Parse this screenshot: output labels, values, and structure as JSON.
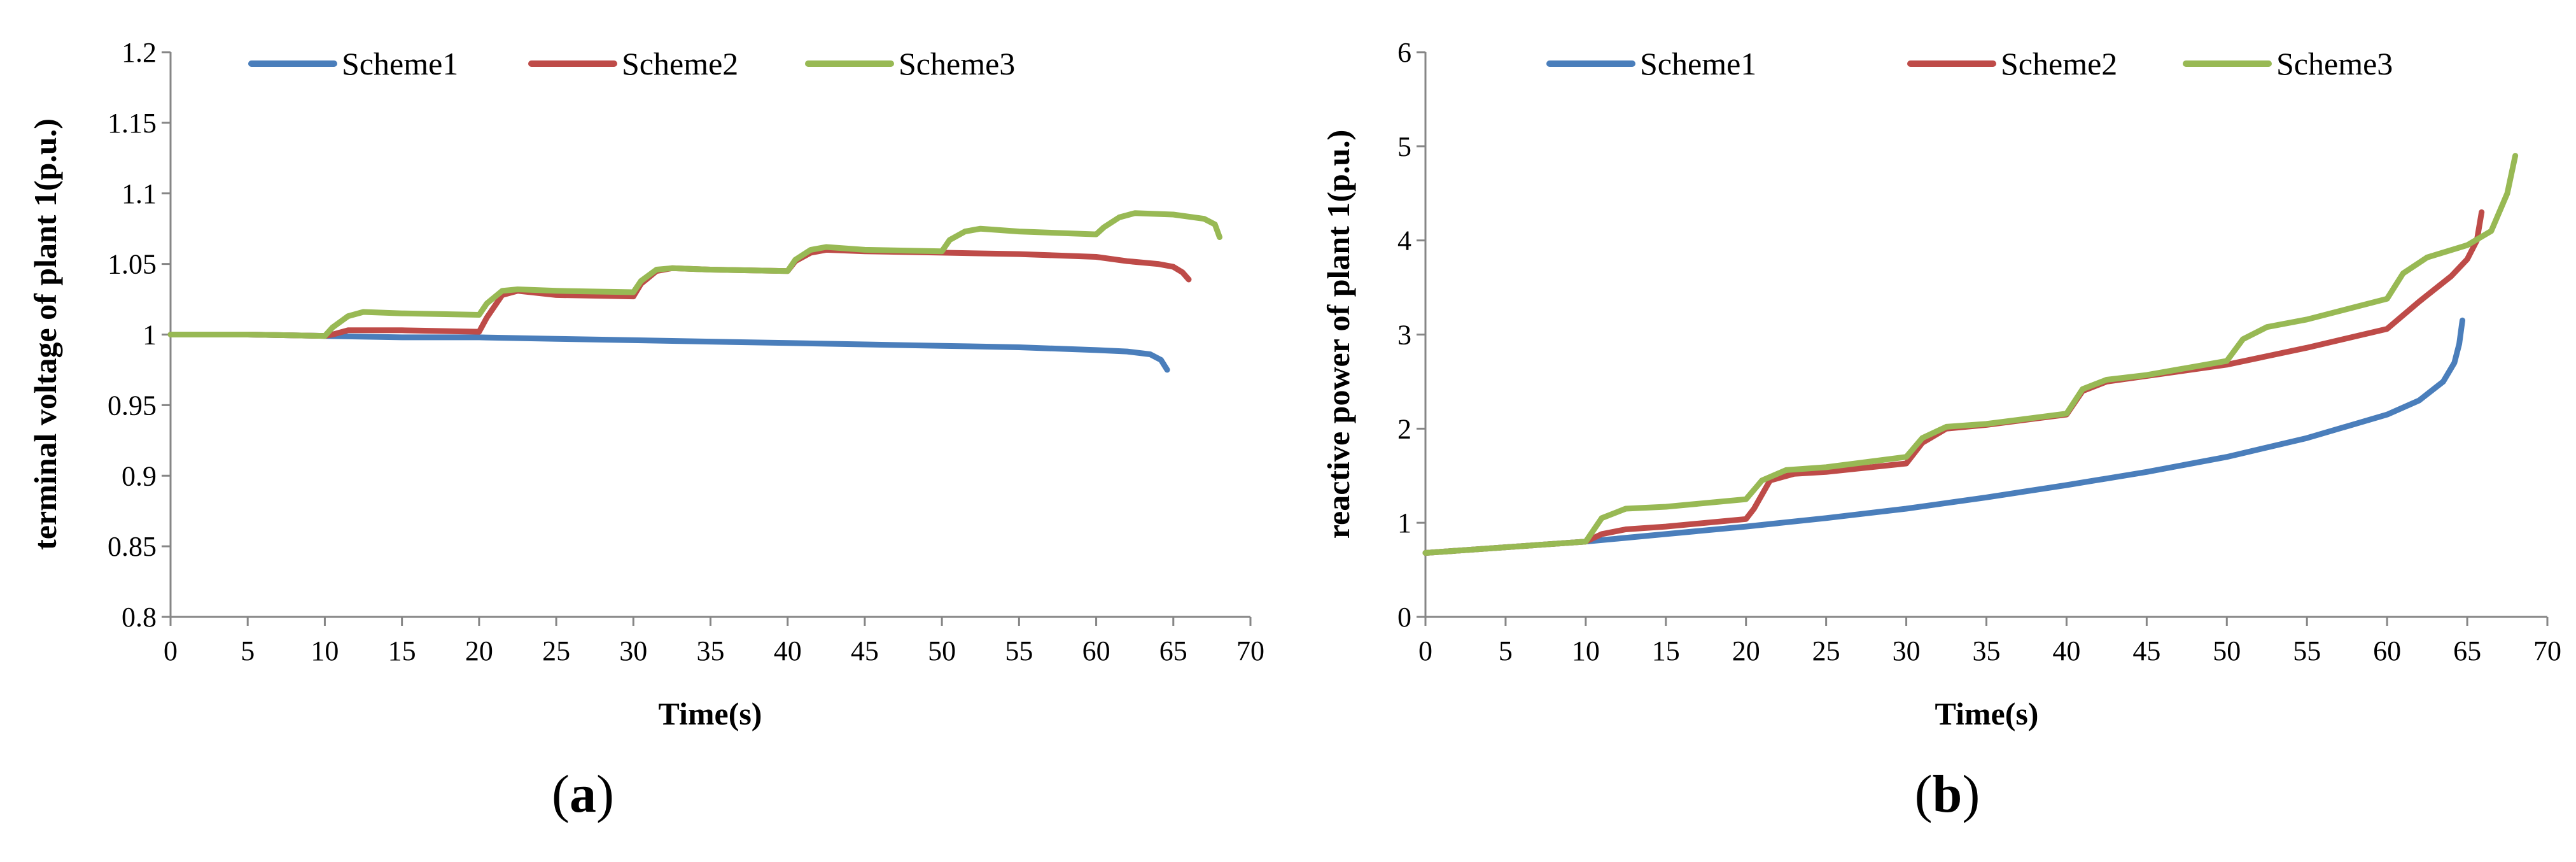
{
  "chart_data": [
    {
      "type": "line",
      "panel_label": "a",
      "xlabel": "Time(s)",
      "ylabel": "terminal voltage of plant 1(p.u.)",
      "xlim": [
        0,
        70
      ],
      "ylim": [
        0.8,
        1.2
      ],
      "x_ticks": [
        "0",
        "5",
        "10",
        "15",
        "20",
        "25",
        "30",
        "35",
        "40",
        "45",
        "50",
        "55",
        "60",
        "65",
        "70"
      ],
      "y_ticks": [
        "0.8",
        "0.85",
        "0.9",
        "0.95",
        "1",
        "1.05",
        "1.1",
        "1.15",
        "1.2"
      ],
      "grid": false,
      "legend_position": "top",
      "series": [
        {
          "name": "Scheme1",
          "color": "#4a7ebb",
          "points": [
            [
              0,
              1.0
            ],
            [
              5,
              1.0
            ],
            [
              10,
              0.999
            ],
            [
              15,
              0.998
            ],
            [
              20,
              0.998
            ],
            [
              25,
              0.997
            ],
            [
              30,
              0.996
            ],
            [
              35,
              0.995
            ],
            [
              40,
              0.994
            ],
            [
              45,
              0.993
            ],
            [
              50,
              0.992
            ],
            [
              55,
              0.991
            ],
            [
              60,
              0.989
            ],
            [
              62,
              0.988
            ],
            [
              63.5,
              0.986
            ],
            [
              64.2,
              0.982
            ],
            [
              64.6,
              0.975
            ]
          ]
        },
        {
          "name": "Scheme2",
          "color": "#be4b48",
          "points": [
            [
              0,
              1.0
            ],
            [
              5,
              1.0
            ],
            [
              10,
              0.999
            ],
            [
              10.5,
              1.0
            ],
            [
              11.5,
              1.003
            ],
            [
              15,
              1.003
            ],
            [
              20,
              1.002
            ],
            [
              20.5,
              1.012
            ],
            [
              21.5,
              1.028
            ],
            [
              22.5,
              1.031
            ],
            [
              25,
              1.028
            ],
            [
              30,
              1.027
            ],
            [
              30.5,
              1.036
            ],
            [
              31.5,
              1.045
            ],
            [
              32.5,
              1.047
            ],
            [
              35,
              1.046
            ],
            [
              40,
              1.045
            ],
            [
              40.5,
              1.052
            ],
            [
              41.5,
              1.058
            ],
            [
              42.5,
              1.06
            ],
            [
              45,
              1.059
            ],
            [
              50,
              1.058
            ],
            [
              55,
              1.057
            ],
            [
              60,
              1.055
            ],
            [
              62,
              1.052
            ],
            [
              64,
              1.05
            ],
            [
              65,
              1.048
            ],
            [
              65.6,
              1.044
            ],
            [
              66,
              1.039
            ]
          ]
        },
        {
          "name": "Scheme3",
          "color": "#98b954",
          "points": [
            [
              0,
              1.0
            ],
            [
              5,
              1.0
            ],
            [
              10,
              0.999
            ],
            [
              10.5,
              1.005
            ],
            [
              11.5,
              1.013
            ],
            [
              12.5,
              1.016
            ],
            [
              15,
              1.015
            ],
            [
              20,
              1.014
            ],
            [
              20.5,
              1.022
            ],
            [
              21.5,
              1.031
            ],
            [
              22.5,
              1.032
            ],
            [
              25,
              1.031
            ],
            [
              30,
              1.03
            ],
            [
              30.5,
              1.038
            ],
            [
              31.5,
              1.046
            ],
            [
              32.5,
              1.047
            ],
            [
              35,
              1.046
            ],
            [
              40,
              1.045
            ],
            [
              40.5,
              1.053
            ],
            [
              41.5,
              1.06
            ],
            [
              42.5,
              1.062
            ],
            [
              45,
              1.06
            ],
            [
              50,
              1.059
            ],
            [
              50.5,
              1.067
            ],
            [
              51.5,
              1.073
            ],
            [
              52.5,
              1.075
            ],
            [
              55,
              1.073
            ],
            [
              60,
              1.071
            ],
            [
              60.5,
              1.076
            ],
            [
              61.5,
              1.083
            ],
            [
              62.5,
              1.086
            ],
            [
              65,
              1.085
            ],
            [
              67,
              1.082
            ],
            [
              67.7,
              1.078
            ],
            [
              68,
              1.069
            ]
          ]
        }
      ]
    },
    {
      "type": "line",
      "panel_label": "b",
      "xlabel": "Time(s)",
      "ylabel": "reactive power of plant 1(p.u.)",
      "xlim": [
        0,
        70
      ],
      "ylim": [
        0,
        6
      ],
      "x_ticks": [
        "0",
        "5",
        "10",
        "15",
        "20",
        "25",
        "30",
        "35",
        "40",
        "45",
        "50",
        "55",
        "60",
        "65",
        "70"
      ],
      "y_ticks": [
        "0",
        "1",
        "2",
        "3",
        "4",
        "5",
        "6"
      ],
      "grid": false,
      "legend_position": "top",
      "series": [
        {
          "name": "Scheme1",
          "color": "#4a7ebb",
          "points": [
            [
              0,
              0.68
            ],
            [
              5,
              0.74
            ],
            [
              10,
              0.8
            ],
            [
              15,
              0.88
            ],
            [
              20,
              0.96
            ],
            [
              25,
              1.05
            ],
            [
              30,
              1.15
            ],
            [
              35,
              1.27
            ],
            [
              40,
              1.4
            ],
            [
              45,
              1.54
            ],
            [
              50,
              1.7
            ],
            [
              55,
              1.9
            ],
            [
              60,
              2.15
            ],
            [
              62,
              2.3
            ],
            [
              63.5,
              2.5
            ],
            [
              64.2,
              2.7
            ],
            [
              64.5,
              2.9
            ],
            [
              64.7,
              3.15
            ]
          ]
        },
        {
          "name": "Scheme2",
          "color": "#be4b48",
          "points": [
            [
              0,
              0.68
            ],
            [
              5,
              0.74
            ],
            [
              10,
              0.8
            ],
            [
              11,
              0.88
            ],
            [
              12.5,
              0.93
            ],
            [
              15,
              0.96
            ],
            [
              20,
              1.04
            ],
            [
              20.5,
              1.15
            ],
            [
              21.5,
              1.45
            ],
            [
              23,
              1.52
            ],
            [
              25,
              1.54
            ],
            [
              30,
              1.63
            ],
            [
              31,
              1.85
            ],
            [
              32.5,
              2.0
            ],
            [
              35,
              2.04
            ],
            [
              40,
              2.15
            ],
            [
              41,
              2.4
            ],
            [
              42.5,
              2.5
            ],
            [
              45,
              2.56
            ],
            [
              50,
              2.68
            ],
            [
              55,
              2.86
            ],
            [
              60,
              3.06
            ],
            [
              62,
              3.35
            ],
            [
              64,
              3.62
            ],
            [
              65,
              3.8
            ],
            [
              65.6,
              4.0
            ],
            [
              65.9,
              4.3
            ]
          ]
        },
        {
          "name": "Scheme3",
          "color": "#98b954",
          "points": [
            [
              0,
              0.68
            ],
            [
              5,
              0.74
            ],
            [
              10,
              0.8
            ],
            [
              11,
              1.05
            ],
            [
              12.5,
              1.15
            ],
            [
              15,
              1.17
            ],
            [
              20,
              1.25
            ],
            [
              21,
              1.45
            ],
            [
              22.5,
              1.56
            ],
            [
              25,
              1.59
            ],
            [
              30,
              1.7
            ],
            [
              31,
              1.9
            ],
            [
              32.5,
              2.02
            ],
            [
              35,
              2.05
            ],
            [
              40,
              2.16
            ],
            [
              41,
              2.42
            ],
            [
              42.5,
              2.52
            ],
            [
              45,
              2.57
            ],
            [
              50,
              2.72
            ],
            [
              51,
              2.95
            ],
            [
              52.5,
              3.08
            ],
            [
              55,
              3.16
            ],
            [
              60,
              3.38
            ],
            [
              61,
              3.65
            ],
            [
              62.5,
              3.82
            ],
            [
              65,
              3.95
            ],
            [
              66.5,
              4.1
            ],
            [
              67.5,
              4.5
            ],
            [
              68,
              4.9
            ]
          ]
        }
      ]
    }
  ]
}
